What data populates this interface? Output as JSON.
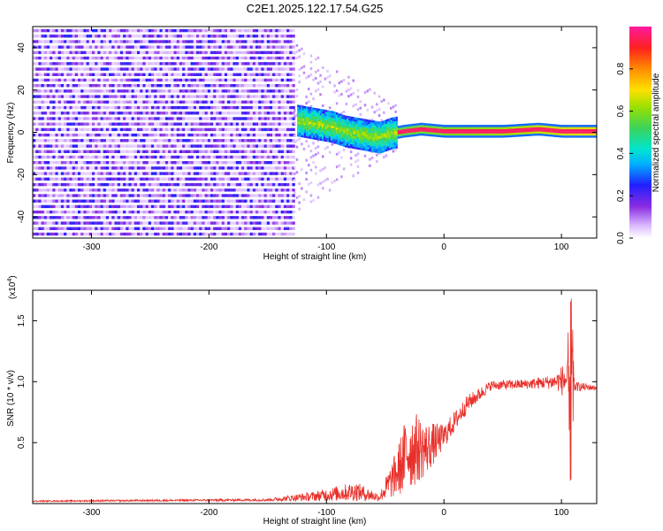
{
  "title": "C2E1.2025.122.17.54.G25",
  "chart_data": [
    {
      "type": "heatmap",
      "xlabel": "Height of straight line (km)",
      "ylabel": "Frequency (Hz)",
      "xlim": [
        -350,
        130
      ],
      "ylim": [
        -50,
        50
      ],
      "xticks": [
        "-300",
        "-200",
        "-100",
        "0",
        "100"
      ],
      "yticks": [
        "-40",
        "-20",
        "0",
        "20",
        "40"
      ],
      "colorbar_label": "Normalized spectral amplitude",
      "colorbar_ticks": [
        "0.0",
        "0.2",
        "0.4",
        "0.6",
        "0.8"
      ],
      "colorbar_range": [
        0,
        1
      ],
      "regions": [
        {
          "kind": "noise",
          "x_range": [
            -350,
            -128
          ],
          "y_range": [
            -50,
            50
          ],
          "level": 0.12
        },
        {
          "kind": "sparse-noise",
          "x_range": [
            -128,
            -40
          ],
          "y_range": [
            -50,
            50
          ],
          "level": 0.06
        },
        {
          "kind": "ridge",
          "points": [
            [
              -125,
              5
            ],
            [
              -115,
              4
            ],
            [
              -105,
              3
            ],
            [
              -95,
              2
            ],
            [
              -85,
              0
            ],
            [
              -75,
              -1
            ],
            [
              -65,
              -2
            ],
            [
              -55,
              -3
            ],
            [
              -45,
              -1
            ],
            [
              -35,
              0
            ],
            [
              -20,
              1
            ],
            [
              0,
              0
            ],
            [
              50,
              0
            ],
            [
              80,
              1
            ],
            [
              100,
              0
            ],
            [
              130,
              0
            ]
          ],
          "level_start": 0.45,
          "level_end": 0.95
        }
      ]
    },
    {
      "type": "line",
      "xlabel": "Height of straight line (km)",
      "ylabel": "SNR (10 * v/v)",
      "y_multiplier": "(x10",
      "y_multiplier_exp": "4",
      "xlim": [
        -350,
        130
      ],
      "ylim": [
        0,
        1.75
      ],
      "xticks": [
        "-300",
        "-200",
        "-100",
        "0",
        "100"
      ],
      "yticks": [
        "0.5",
        "1.0",
        "1.5"
      ],
      "color": "#e8302a",
      "envelope": [
        {
          "x": -350,
          "y": 0.02,
          "noise": 0.005
        },
        {
          "x": -150,
          "y": 0.03,
          "noise": 0.01
        },
        {
          "x": -110,
          "y": 0.06,
          "noise": 0.04
        },
        {
          "x": -75,
          "y": 0.1,
          "noise": 0.08
        },
        {
          "x": -55,
          "y": 0.05,
          "noise": 0.03
        },
        {
          "x": -40,
          "y": 0.25,
          "noise": 0.2
        },
        {
          "x": -30,
          "y": 0.45,
          "noise": 0.35
        },
        {
          "x": -15,
          "y": 0.45,
          "noise": 0.22
        },
        {
          "x": 0,
          "y": 0.55,
          "noise": 0.1
        },
        {
          "x": 20,
          "y": 0.82,
          "noise": 0.07
        },
        {
          "x": 40,
          "y": 0.97,
          "noise": 0.04
        },
        {
          "x": 70,
          "y": 0.98,
          "noise": 0.04
        },
        {
          "x": 95,
          "y": 1.0,
          "noise": 0.06
        },
        {
          "x": 105,
          "y": 1.02,
          "noise": 0.18
        },
        {
          "x": 112,
          "y": 0.96,
          "noise": 0.04
        },
        {
          "x": 130,
          "y": 0.95,
          "noise": 0.02
        }
      ],
      "features": [
        {
          "x": 108,
          "y_min": 0.15,
          "y_max": 1.72
        }
      ]
    }
  ]
}
